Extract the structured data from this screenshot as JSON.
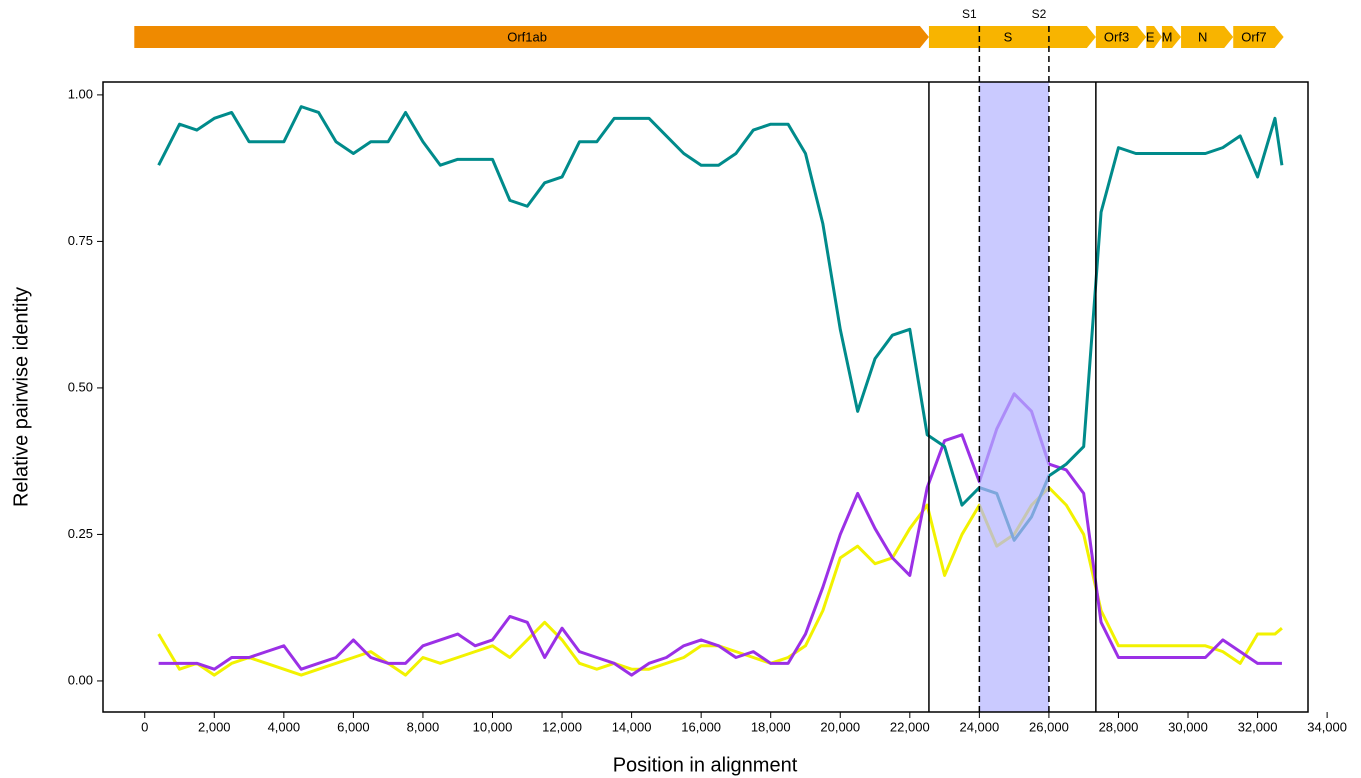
{
  "chart_data": {
    "type": "line",
    "xlabel": "Position in alignment",
    "ylabel": "Relative pairwise identity",
    "x": [
      400,
      1000,
      1500,
      2000,
      2500,
      3000,
      3500,
      4000,
      4500,
      5000,
      5500,
      6000,
      6500,
      7000,
      7500,
      8000,
      8500,
      9000,
      9500,
      10000,
      10500,
      11000,
      11500,
      12000,
      12500,
      13000,
      13500,
      14000,
      14500,
      15000,
      15500,
      16000,
      16500,
      17000,
      17500,
      18000,
      18500,
      19000,
      19500,
      20000,
      20500,
      21000,
      21500,
      22000,
      22500,
      23000,
      23500,
      24000,
      24500,
      25000,
      25500,
      26000,
      26500,
      27000,
      27500,
      28000,
      28500,
      29000,
      29500,
      30000,
      30500,
      31000,
      31500,
      32000,
      32500,
      32700
    ],
    "series": [
      {
        "color": "#f2f200",
        "values": [
          0.08,
          0.02,
          0.03,
          0.01,
          0.03,
          0.04,
          0.03,
          0.02,
          0.01,
          0.02,
          0.03,
          0.04,
          0.05,
          0.03,
          0.01,
          0.04,
          0.03,
          0.04,
          0.05,
          0.06,
          0.04,
          0.07,
          0.1,
          0.07,
          0.03,
          0.02,
          0.03,
          0.02,
          0.02,
          0.03,
          0.04,
          0.06,
          0.06,
          0.05,
          0.04,
          0.03,
          0.04,
          0.06,
          0.12,
          0.21,
          0.23,
          0.2,
          0.21,
          0.26,
          0.3,
          0.18,
          0.25,
          0.3,
          0.23,
          0.25,
          0.3,
          0.33,
          0.3,
          0.25,
          0.12,
          0.06,
          0.06,
          0.06,
          0.06,
          0.06,
          0.06,
          0.05,
          0.03,
          0.08,
          0.08,
          0.09
        ]
      },
      {
        "color": "#9b30e6",
        "values": [
          0.03,
          0.03,
          0.03,
          0.02,
          0.04,
          0.04,
          0.05,
          0.06,
          0.02,
          0.03,
          0.04,
          0.07,
          0.04,
          0.03,
          0.03,
          0.06,
          0.07,
          0.08,
          0.06,
          0.07,
          0.11,
          0.1,
          0.04,
          0.09,
          0.05,
          0.04,
          0.03,
          0.01,
          0.03,
          0.04,
          0.06,
          0.07,
          0.06,
          0.04,
          0.05,
          0.03,
          0.03,
          0.08,
          0.16,
          0.25,
          0.32,
          0.26,
          0.21,
          0.18,
          0.33,
          0.41,
          0.42,
          0.34,
          0.43,
          0.49,
          0.46,
          0.37,
          0.36,
          0.32,
          0.1,
          0.04,
          0.04,
          0.04,
          0.04,
          0.04,
          0.04,
          0.07,
          0.05,
          0.03,
          0.03,
          0.03
        ]
      },
      {
        "color": "#008b8b",
        "values": [
          0.88,
          0.95,
          0.94,
          0.96,
          0.97,
          0.92,
          0.92,
          0.92,
          0.98,
          0.97,
          0.92,
          0.9,
          0.92,
          0.92,
          0.97,
          0.92,
          0.88,
          0.89,
          0.89,
          0.89,
          0.82,
          0.81,
          0.85,
          0.86,
          0.92,
          0.92,
          0.96,
          0.96,
          0.96,
          0.93,
          0.9,
          0.88,
          0.88,
          0.9,
          0.94,
          0.95,
          0.95,
          0.9,
          0.78,
          0.6,
          0.46,
          0.55,
          0.59,
          0.6,
          0.42,
          0.4,
          0.3,
          0.33,
          0.32,
          0.24,
          0.28,
          0.35,
          0.37,
          0.4,
          0.8,
          0.91,
          0.9,
          0.9,
          0.9,
          0.9,
          0.9,
          0.91,
          0.93,
          0.86,
          0.96,
          0.88
        ]
      }
    ],
    "xlim": [
      -1200,
      33450
    ],
    "ylim": [
      -0.053,
      1.022
    ],
    "xticks": [
      0,
      {
        "value": 2000,
        "label": "2,000"
      },
      {
        "value": 4000,
        "label": "4,000"
      },
      {
        "value": 6000,
        "label": "6,000"
      },
      {
        "value": 8000,
        "label": "8,000"
      },
      {
        "value": 10000,
        "label": "10,000"
      },
      {
        "value": 12000,
        "label": "12,000"
      },
      {
        "value": 14000,
        "label": "14,000"
      },
      {
        "value": 16000,
        "label": "16,000"
      },
      {
        "value": 18000,
        "label": "18,000"
      },
      {
        "value": 20000,
        "label": "20,000"
      },
      {
        "value": 22000,
        "label": "22,000"
      },
      {
        "value": 24000,
        "label": "24,000"
      },
      {
        "value": 26000,
        "label": "26,000"
      },
      {
        "value": 28000,
        "label": "28,000"
      },
      {
        "value": 30000,
        "label": "30,000"
      },
      {
        "value": 32000,
        "label": "32,000"
      },
      {
        "value": 34000,
        "label": "34,000"
      }
    ],
    "yticks": [
      {
        "value": 0,
        "label": "0.00"
      },
      {
        "value": 0.25,
        "label": "0.25"
      },
      {
        "value": 0.5,
        "label": "0.50"
      },
      {
        "value": 0.75,
        "label": "0.75"
      },
      {
        "value": 1,
        "label": "1.00"
      }
    ],
    "grid": false,
    "shade": [
      24000,
      26000
    ],
    "shade_color": "#b4b4ff",
    "vlines": [
      22550,
      27350
    ],
    "dashed_lines": [
      {
        "value": 24000,
        "label": "S1"
      },
      {
        "value": 26000,
        "label": "S2"
      }
    ],
    "genes": [
      {
        "label": "Orf1ab",
        "start": -300,
        "end": 22550,
        "color": "#ef8a00"
      },
      {
        "label": "S",
        "start": 22550,
        "end": 27350,
        "color": "#f8b400"
      },
      {
        "label": "Orf3",
        "start": 27350,
        "end": 28800,
        "color": "#f8b400"
      },
      {
        "label": "E",
        "start": 28800,
        "end": 29250,
        "color": "#f8b400"
      },
      {
        "label": "M",
        "start": 29250,
        "end": 29800,
        "color": "#f8b400"
      },
      {
        "label": "N",
        "start": 29800,
        "end": 31300,
        "color": "#f8b400"
      },
      {
        "label": "Orf7",
        "start": 31300,
        "end": 32750,
        "color": "#f8b400"
      }
    ]
  }
}
